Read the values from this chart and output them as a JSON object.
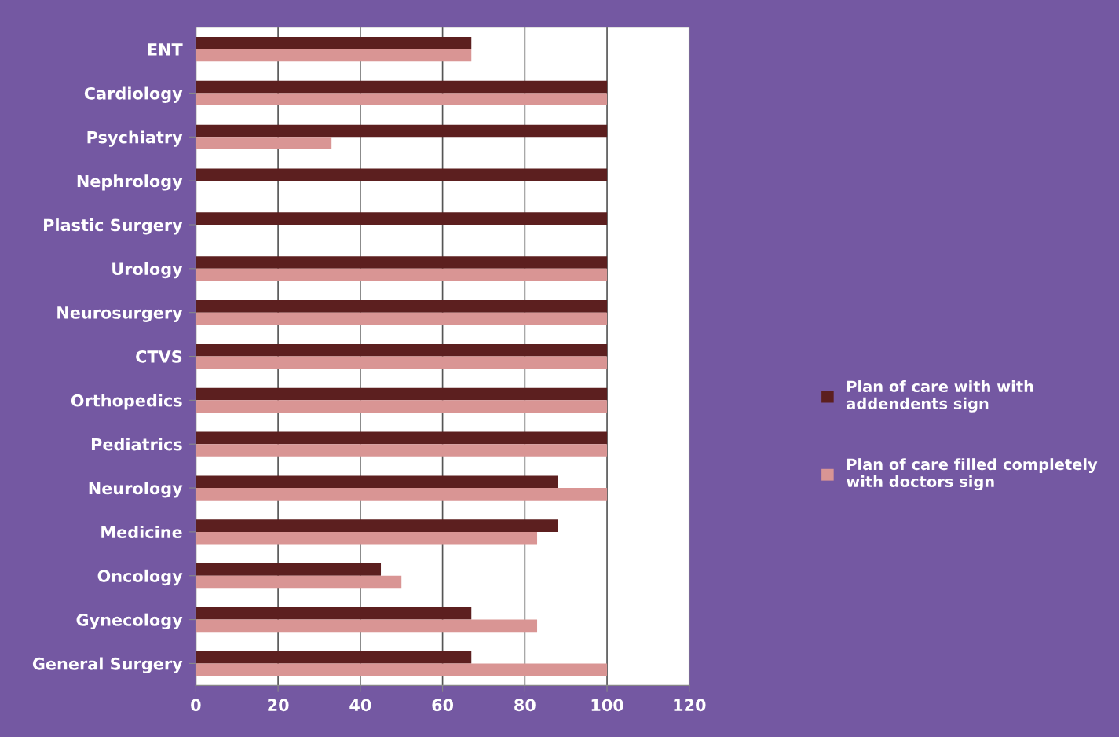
{
  "chart_data": {
    "type": "bar",
    "orientation": "horizontal",
    "categories": [
      "ENT",
      "Cardiology",
      "Psychiatry",
      "Nephrology",
      "Plastic Surgery",
      "Urology",
      "Neurosurgery",
      "CTVS",
      "Orthopedics",
      "Pediatrics",
      "Neurology",
      "Medicine",
      "Oncology",
      "Gynecology",
      "General Surgery"
    ],
    "series": [
      {
        "name": "Plan of care with with\naddendents sign",
        "color": "#5c1f1f",
        "values": [
          67,
          100,
          100,
          100,
          100,
          100,
          100,
          100,
          100,
          100,
          88,
          88,
          45,
          67,
          67
        ]
      },
      {
        "name": "Plan of care filled completely\nwith doctors sign",
        "color": "#d99594",
        "values": [
          67,
          100,
          33,
          0,
          0,
          100,
          100,
          100,
          100,
          100,
          100,
          83,
          50,
          83,
          100
        ]
      }
    ],
    "xlim": [
      0,
      120
    ],
    "xticks": [
      0,
      20,
      40,
      60,
      80,
      100,
      120
    ],
    "grid": "x",
    "legend": "right"
  }
}
